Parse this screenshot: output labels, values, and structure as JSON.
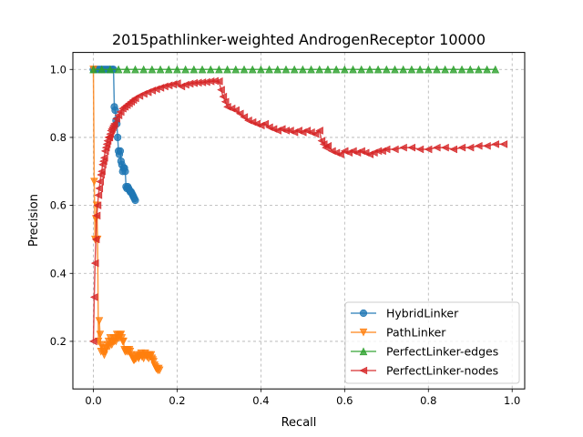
{
  "chart_data": {
    "type": "line",
    "title": "2015pathlinker-weighted AndrogenReceptor 10000",
    "xlabel": "Recall",
    "ylabel": "Precision",
    "xlim": [
      -0.049,
      1.03
    ],
    "ylim": [
      0.06,
      1.05
    ],
    "xticks": [
      "0.0",
      "0.2",
      "0.4",
      "0.6",
      "0.8",
      "1.0"
    ],
    "xtick_values": [
      0.0,
      0.2,
      0.4,
      0.6,
      0.8,
      1.0
    ],
    "yticks": [
      "0.2",
      "0.4",
      "0.6",
      "0.8",
      "1.0"
    ],
    "ytick_values": [
      0.2,
      0.4,
      0.6,
      0.8,
      1.0
    ],
    "grid": true,
    "legend_position": "lower right",
    "series": [
      {
        "name": "HybridLinker",
        "color": "#1f77b4",
        "marker": "circle",
        "x": [
          0.0,
          0.005,
          0.01,
          0.015,
          0.02,
          0.025,
          0.03,
          0.035,
          0.04,
          0.045,
          0.048,
          0.05,
          0.052,
          0.054,
          0.056,
          0.058,
          0.06,
          0.062,
          0.064,
          0.066,
          0.068,
          0.07,
          0.072,
          0.074,
          0.076,
          0.078,
          0.08,
          0.082,
          0.084,
          0.086,
          0.088,
          0.09,
          0.092,
          0.094,
          0.096,
          0.098,
          0.1
        ],
        "y": [
          1.0,
          1.0,
          1.0,
          1.0,
          1.0,
          1.0,
          1.0,
          1.0,
          1.0,
          1.0,
          1.0,
          0.89,
          0.88,
          0.85,
          0.84,
          0.8,
          0.76,
          0.75,
          0.76,
          0.73,
          0.72,
          0.7,
          0.71,
          0.71,
          0.7,
          0.655,
          0.65,
          0.655,
          0.65,
          0.645,
          0.64,
          0.64,
          0.635,
          0.63,
          0.625,
          0.62,
          0.615
        ]
      },
      {
        "name": "PathLinker",
        "color": "#ff7f0e",
        "marker": "triangle-down",
        "x": [
          0.0,
          0.002,
          0.004,
          0.006,
          0.008,
          0.01,
          0.012,
          0.014,
          0.016,
          0.018,
          0.02,
          0.022,
          0.024,
          0.026,
          0.028,
          0.03,
          0.032,
          0.034,
          0.036,
          0.038,
          0.04,
          0.042,
          0.044,
          0.046,
          0.048,
          0.05,
          0.052,
          0.054,
          0.056,
          0.058,
          0.06,
          0.062,
          0.064,
          0.066,
          0.068,
          0.07,
          0.072,
          0.074,
          0.076,
          0.078,
          0.08,
          0.082,
          0.084,
          0.086,
          0.088,
          0.09,
          0.092,
          0.094,
          0.096,
          0.098,
          0.1,
          0.102,
          0.104,
          0.106,
          0.108,
          0.11,
          0.112,
          0.114,
          0.116,
          0.118,
          0.12,
          0.122,
          0.124,
          0.126,
          0.128,
          0.13,
          0.132,
          0.134,
          0.136,
          0.138,
          0.14,
          0.142,
          0.144,
          0.146,
          0.148,
          0.15,
          0.152,
          0.154,
          0.156,
          0.158
        ],
        "y": [
          1.0,
          0.67,
          0.5,
          0.56,
          0.6,
          0.5,
          0.2,
          0.26,
          0.22,
          0.17,
          0.19,
          0.18,
          0.17,
          0.16,
          0.17,
          0.18,
          0.18,
          0.19,
          0.2,
          0.185,
          0.21,
          0.2,
          0.19,
          0.2,
          0.21,
          0.2,
          0.21,
          0.2,
          0.22,
          0.21,
          0.22,
          0.21,
          0.22,
          0.22,
          0.21,
          0.2,
          0.2,
          0.175,
          0.17,
          0.175,
          0.17,
          0.175,
          0.17,
          0.175,
          0.17,
          0.16,
          0.155,
          0.15,
          0.145,
          0.145,
          0.15,
          0.15,
          0.16,
          0.155,
          0.15,
          0.155,
          0.16,
          0.165,
          0.155,
          0.16,
          0.15,
          0.16,
          0.165,
          0.16,
          0.155,
          0.16,
          0.15,
          0.16,
          0.155,
          0.16,
          0.15,
          0.145,
          0.14,
          0.13,
          0.125,
          0.12,
          0.12,
          0.115,
          0.12,
          0.115
        ]
      },
      {
        "name": "PerfectLinker-edges",
        "color": "#2ca02c",
        "marker": "triangle-up",
        "x": [
          0.0,
          0.02,
          0.04,
          0.06,
          0.08,
          0.1,
          0.12,
          0.14,
          0.16,
          0.18,
          0.2,
          0.22,
          0.24,
          0.26,
          0.28,
          0.3,
          0.32,
          0.34,
          0.36,
          0.38,
          0.4,
          0.42,
          0.44,
          0.46,
          0.48,
          0.5,
          0.52,
          0.54,
          0.56,
          0.58,
          0.6,
          0.62,
          0.64,
          0.66,
          0.68,
          0.7,
          0.72,
          0.74,
          0.76,
          0.78,
          0.8,
          0.82,
          0.84,
          0.86,
          0.88,
          0.9,
          0.92,
          0.94,
          0.96
        ],
        "y": [
          1.0,
          1.0,
          1.0,
          1.0,
          1.0,
          1.0,
          1.0,
          1.0,
          1.0,
          1.0,
          1.0,
          1.0,
          1.0,
          1.0,
          1.0,
          1.0,
          1.0,
          1.0,
          1.0,
          1.0,
          1.0,
          1.0,
          1.0,
          1.0,
          1.0,
          1.0,
          1.0,
          1.0,
          1.0,
          1.0,
          1.0,
          1.0,
          1.0,
          1.0,
          1.0,
          1.0,
          1.0,
          1.0,
          1.0,
          1.0,
          1.0,
          1.0,
          1.0,
          1.0,
          1.0,
          1.0,
          1.0,
          1.0,
          1.0
        ]
      },
      {
        "name": "PerfectLinker-nodes",
        "color": "#d62728",
        "marker": "triangle-left",
        "x": [
          0.0,
          0.002,
          0.004,
          0.006,
          0.008,
          0.01,
          0.012,
          0.014,
          0.016,
          0.018,
          0.02,
          0.022,
          0.024,
          0.026,
          0.028,
          0.03,
          0.032,
          0.034,
          0.036,
          0.038,
          0.04,
          0.042,
          0.044,
          0.046,
          0.048,
          0.05,
          0.055,
          0.06,
          0.065,
          0.07,
          0.075,
          0.08,
          0.085,
          0.09,
          0.095,
          0.1,
          0.11,
          0.12,
          0.13,
          0.14,
          0.15,
          0.16,
          0.17,
          0.18,
          0.19,
          0.2,
          0.21,
          0.22,
          0.23,
          0.24,
          0.25,
          0.26,
          0.27,
          0.28,
          0.29,
          0.3,
          0.305,
          0.31,
          0.315,
          0.32,
          0.33,
          0.34,
          0.35,
          0.36,
          0.37,
          0.38,
          0.39,
          0.4,
          0.41,
          0.42,
          0.43,
          0.44,
          0.45,
          0.46,
          0.47,
          0.48,
          0.49,
          0.5,
          0.51,
          0.52,
          0.53,
          0.54,
          0.545,
          0.55,
          0.555,
          0.56,
          0.57,
          0.58,
          0.59,
          0.6,
          0.61,
          0.62,
          0.63,
          0.64,
          0.65,
          0.66,
          0.67,
          0.68,
          0.69,
          0.7,
          0.72,
          0.74,
          0.76,
          0.78,
          0.8,
          0.82,
          0.84,
          0.86,
          0.88,
          0.9,
          0.92,
          0.94,
          0.96,
          0.98
        ],
        "y": [
          0.2,
          0.33,
          0.43,
          0.5,
          0.57,
          0.6,
          0.63,
          0.65,
          0.67,
          0.69,
          0.7,
          0.72,
          0.73,
          0.74,
          0.76,
          0.77,
          0.78,
          0.79,
          0.8,
          0.8,
          0.81,
          0.82,
          0.825,
          0.83,
          0.835,
          0.84,
          0.855,
          0.865,
          0.875,
          0.885,
          0.89,
          0.895,
          0.9,
          0.905,
          0.91,
          0.915,
          0.922,
          0.928,
          0.933,
          0.938,
          0.942,
          0.946,
          0.95,
          0.953,
          0.956,
          0.959,
          0.95,
          0.955,
          0.958,
          0.96,
          0.961,
          0.962,
          0.963,
          0.965,
          0.966,
          0.965,
          0.94,
          0.92,
          0.905,
          0.89,
          0.885,
          0.88,
          0.87,
          0.86,
          0.85,
          0.845,
          0.84,
          0.835,
          0.84,
          0.83,
          0.825,
          0.82,
          0.825,
          0.82,
          0.82,
          0.815,
          0.82,
          0.815,
          0.82,
          0.815,
          0.81,
          0.82,
          0.79,
          0.78,
          0.77,
          0.775,
          0.76,
          0.755,
          0.75,
          0.76,
          0.755,
          0.76,
          0.755,
          0.76,
          0.755,
          0.75,
          0.755,
          0.76,
          0.76,
          0.765,
          0.765,
          0.77,
          0.77,
          0.765,
          0.765,
          0.77,
          0.77,
          0.765,
          0.77,
          0.77,
          0.775,
          0.775,
          0.78,
          0.78
        ]
      }
    ]
  }
}
